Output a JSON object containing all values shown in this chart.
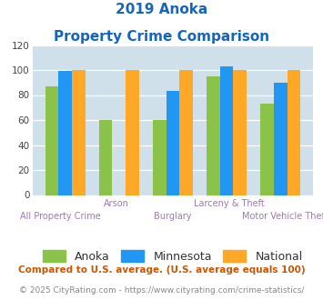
{
  "title_line1": "2019 Anoka",
  "title_line2": "Property Crime Comparison",
  "categories": [
    "All Property Crime",
    "Arson",
    "Burglary",
    "Larceny & Theft",
    "Motor Vehicle Theft"
  ],
  "anoka_values": [
    87,
    60,
    60,
    95,
    73
  ],
  "minnesota_values": [
    99,
    0,
    83,
    103,
    90
  ],
  "national_values": [
    100,
    100,
    100,
    100,
    100
  ],
  "anoka_color": "#8bc34a",
  "minnesota_color": "#2196f3",
  "national_color": "#ffa726",
  "title_color": "#1565c0",
  "xlabel_color": "#9c7bb5",
  "ylabel_max": 120,
  "ylabel_min": 0,
  "ylabel_step": 20,
  "background_color": "#cfe0ea",
  "legend_labels": [
    "Anoka",
    "Minnesota",
    "National"
  ],
  "footnote1": "Compared to U.S. average. (U.S. average equals 100)",
  "footnote2": "© 2025 CityRating.com - https://www.cityrating.com/crime-statistics/",
  "footnote1_color": "#cc5500",
  "footnote2_color": "#888888",
  "bar_width": 0.25
}
